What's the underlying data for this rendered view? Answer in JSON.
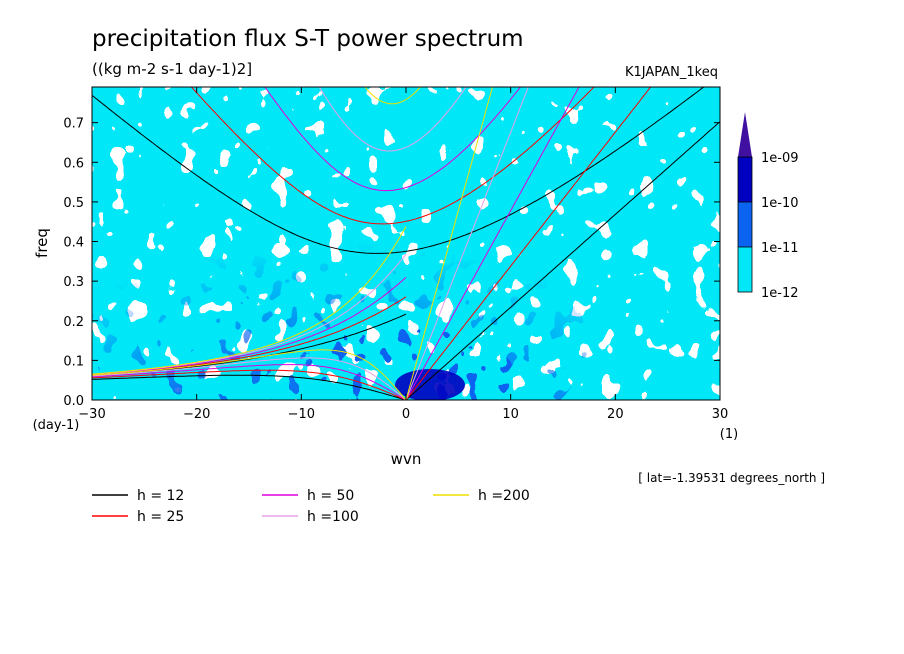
{
  "chart_data": {
    "type": "heatmap",
    "title": "precipitation flux S-T power spectrum",
    "subtitle": "((kg m-2 s-1 day-1)2]",
    "dataset_label": "K1JAPAN_1keq",
    "xlabel": "wvn",
    "ylabel": "freq",
    "x_unit": "(1)",
    "y_unit": "(day-1)",
    "xlim": [
      -30,
      30
    ],
    "ylim": [
      0,
      0.79
    ],
    "x_ticks": [
      -30,
      -20,
      -10,
      0,
      10,
      20,
      30
    ],
    "y_ticks": [
      0.0,
      0.1,
      0.2,
      0.3,
      0.4,
      0.5,
      0.6,
      0.7
    ],
    "x_tick_labels": [
      "−30",
      "−20",
      "−10",
      "0",
      "10",
      "20",
      "30"
    ],
    "y_tick_labels": [
      "0.0",
      "0.1",
      "0.2",
      "0.3",
      "0.4",
      "0.5",
      "0.6",
      "0.7"
    ],
    "grid": false,
    "colorbar": {
      "levels": [
        "1e-12",
        "1e-11",
        "1e-10",
        "1e-09"
      ],
      "colors": [
        "#00e8f8",
        "#0a64f0",
        "#0000c0",
        "#4010a0"
      ]
    },
    "location_note": "[ lat=-1.39531 degrees_north ]",
    "dispersion_curves": [
      {
        "name": "h = 12",
        "h": 12,
        "color": "#000000"
      },
      {
        "name": "h = 25",
        "h": 25,
        "color": "#ff0000"
      },
      {
        "name": "h = 50",
        "h": 50,
        "color": "#e000e0"
      },
      {
        "name": "h =100",
        "h": 100,
        "color": "#e8a0e8"
      },
      {
        "name": "h =200",
        "h": 200,
        "color": "#f0e000"
      }
    ]
  }
}
